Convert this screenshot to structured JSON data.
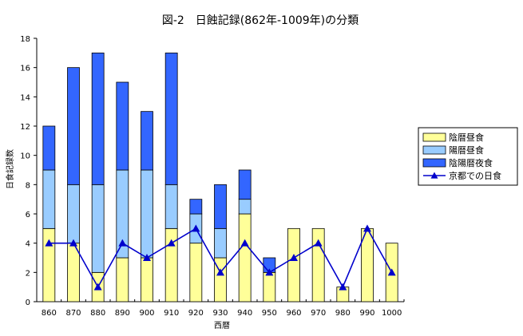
{
  "chart_data": {
    "type": "bar",
    "stacked": true,
    "title": "図-2　日蝕記録(862年-1009年)の分類",
    "xlabel": "西暦",
    "ylabel": "日食記録数",
    "categories": [
      "860",
      "870",
      "880",
      "890",
      "900",
      "910",
      "920",
      "930",
      "940",
      "950",
      "960",
      "970",
      "980",
      "990",
      "1000"
    ],
    "ylim": [
      0,
      18
    ],
    "yticks": [
      "0",
      "2",
      "4",
      "6",
      "8",
      "10",
      "12",
      "14",
      "16",
      "18"
    ],
    "series": [
      {
        "name": "陰暦昼食",
        "type": "bar",
        "color": "#ffff99",
        "values": [
          5,
          4,
          2,
          3,
          3,
          5,
          4,
          3,
          6,
          2,
          5,
          5,
          1,
          5,
          4
        ]
      },
      {
        "name": "陽暦昼食",
        "type": "bar",
        "color": "#99ccff",
        "values": [
          4,
          4,
          6,
          6,
          6,
          3,
          2,
          2,
          1,
          0,
          0,
          0,
          0,
          0,
          0
        ]
      },
      {
        "name": "陰陽暦夜食",
        "type": "bar",
        "color": "#3366ff",
        "values": [
          3,
          8,
          9,
          6,
          4,
          9,
          1,
          3,
          2,
          1,
          0,
          0,
          0,
          0,
          0
        ]
      },
      {
        "name": "京都での日食",
        "type": "line",
        "color": "#0000cc",
        "values": [
          4,
          4,
          1,
          4,
          3,
          4,
          5,
          2,
          4,
          2,
          3,
          4,
          1,
          5,
          2
        ]
      }
    ],
    "grid": false,
    "legend_position": "right"
  }
}
